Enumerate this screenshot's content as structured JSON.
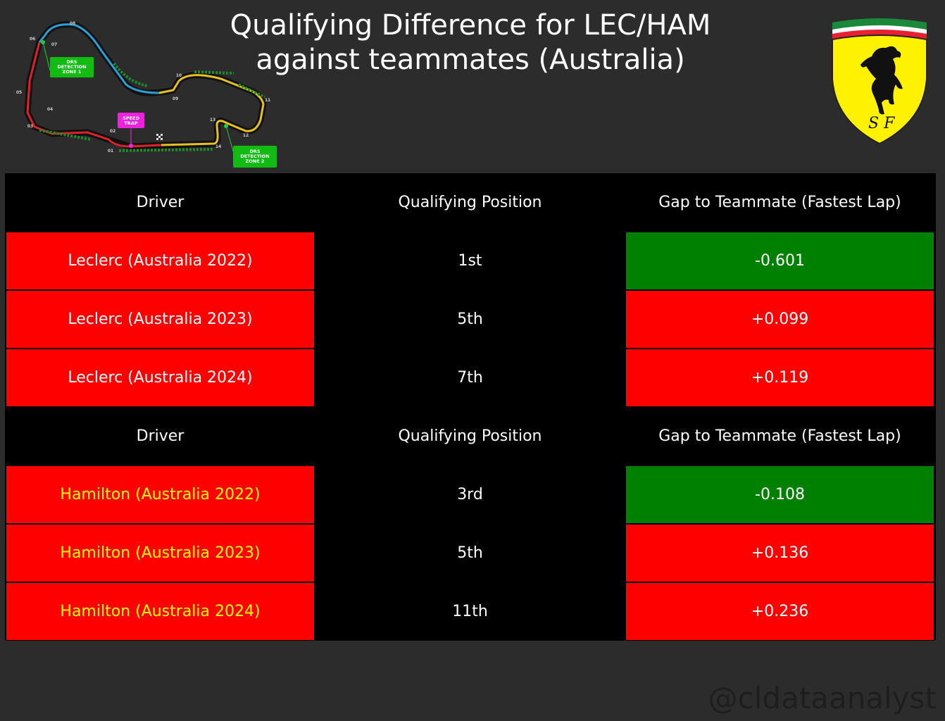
{
  "title": {
    "line1": "Qualifying Difference for LEC/HAM",
    "line2": "against teammates (Australia)"
  },
  "track_map": {
    "icon": "albert-park-circuit-map-icon",
    "drs_zone_1": [
      "DRS",
      "DETECTION",
      "ZONE 1"
    ],
    "drs_zone_2": [
      "DRS",
      "DETECTION",
      "ZONE 2"
    ],
    "speed_trap": [
      "SPEED",
      "TRAP"
    ],
    "turns": [
      "01",
      "02",
      "03",
      "04",
      "05",
      "06",
      "07",
      "08",
      "09",
      "10",
      "11",
      "12",
      "13",
      "14"
    ]
  },
  "logo": {
    "icon": "ferrari-prancing-horse-shield-icon",
    "letters": "S F"
  },
  "colors": {
    "background": "#2c2c2c",
    "table_bg": "#000000",
    "red": "#ff0000",
    "green": "#008000",
    "leclerc_text": "#ffffff",
    "hamilton_text": "#ffff00"
  },
  "table": {
    "sections": [
      {
        "headers": [
          "Driver",
          "Qualifying Position",
          "Gap to Teammate (Fastest Lap)"
        ],
        "driver_color": "#ffffff",
        "rows": [
          {
            "driver": "Leclerc (Australia 2022)",
            "position": "1st",
            "gap": "-0.601",
            "gap_color": "#008000"
          },
          {
            "driver": "Leclerc (Australia 2023)",
            "position": "5th",
            "gap": "+0.099",
            "gap_color": "#ff0000"
          },
          {
            "driver": "Leclerc (Australia 2024)",
            "position": "7th",
            "gap": "+0.119",
            "gap_color": "#ff0000"
          }
        ]
      },
      {
        "headers": [
          "Driver",
          "Qualifying Position",
          "Gap to Teammate (Fastest Lap)"
        ],
        "driver_color": "#ffff00",
        "rows": [
          {
            "driver": "Hamilton (Australia 2022)",
            "position": "3rd",
            "gap": "-0.108",
            "gap_color": "#008000"
          },
          {
            "driver": "Hamilton (Australia 2023)",
            "position": "5th",
            "gap": "+0.136",
            "gap_color": "#ff0000"
          },
          {
            "driver": "Hamilton (Australia 2024)",
            "position": "11th",
            "gap": "+0.236",
            "gap_color": "#ff0000"
          }
        ]
      }
    ]
  },
  "watermark": "@cldataanalyst"
}
